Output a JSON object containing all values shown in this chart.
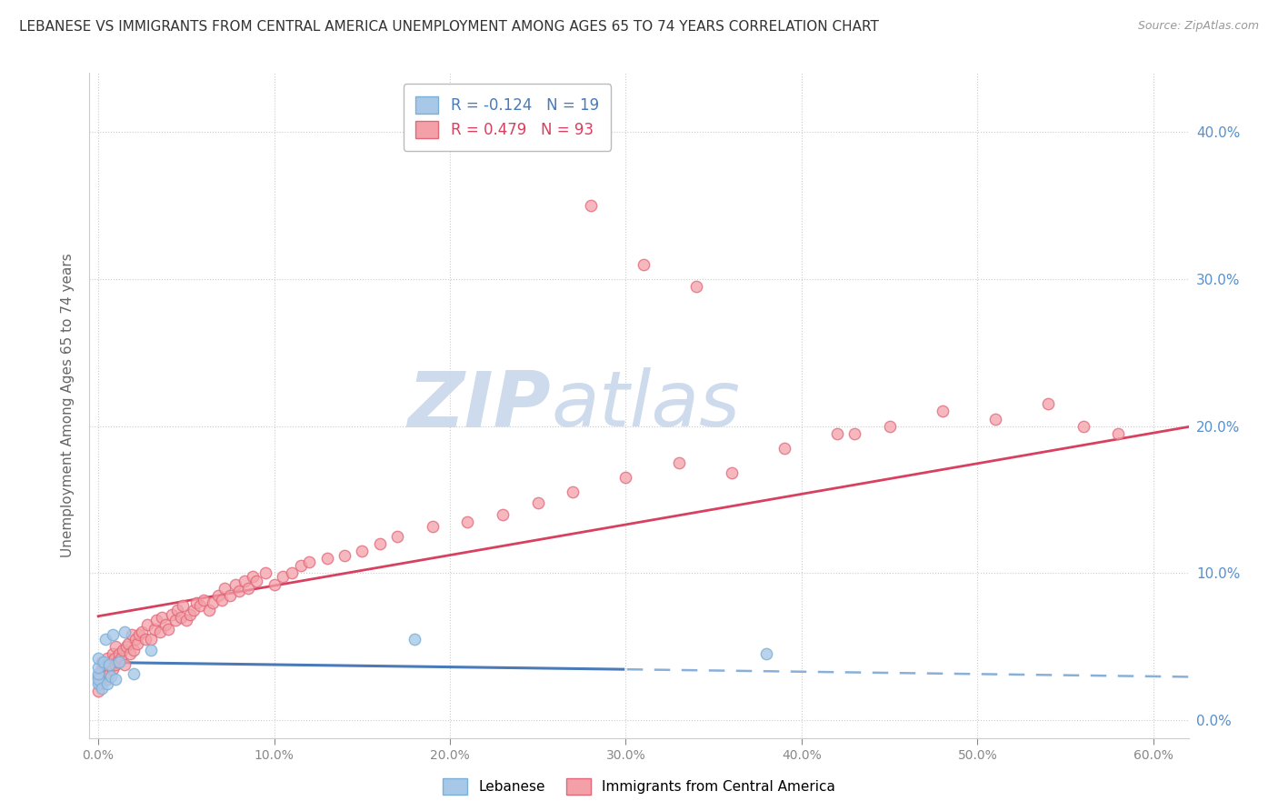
{
  "title": "LEBANESE VS IMMIGRANTS FROM CENTRAL AMERICA UNEMPLOYMENT AMONG AGES 65 TO 74 YEARS CORRELATION CHART",
  "source": "Source: ZipAtlas.com",
  "ylabel": "Unemployment Among Ages 65 to 74 years",
  "legend1_label": "Lebanese",
  "legend2_label": "Immigrants from Central America",
  "R1": -0.124,
  "N1": 19,
  "R2": 0.479,
  "N2": 93,
  "color_blue": "#a8c8e8",
  "color_blue_edge": "#7ab0d8",
  "color_pink": "#f4a0a8",
  "color_pink_edge": "#e06878",
  "color_line_blue_solid": "#4a7ab8",
  "color_line_blue_dash": "#8ab0d8",
  "color_line_pink": "#d84060",
  "watermark_zip": "ZIP",
  "watermark_atlas": "atlas",
  "watermark_color": "#c8d8ec",
  "xtick_vals": [
    0.0,
    0.1,
    0.2,
    0.3,
    0.4,
    0.5,
    0.6
  ],
  "xtick_labels": [
    "0.0%",
    "10.0%",
    "20.0%",
    "30.0%",
    "40.0%",
    "50.0%",
    "60.0%"
  ],
  "ytick_vals": [
    0.0,
    0.1,
    0.2,
    0.3,
    0.4
  ],
  "ytick_labels": [
    "0.0%",
    "10.0%",
    "20.0%",
    "30.0%",
    "40.0%"
  ],
  "yaxis_color": "#5590d0",
  "xaxis_label_color": "#888888",
  "blue_x": [
    0.0,
    0.0,
    0.0,
    0.0,
    0.0,
    0.002,
    0.003,
    0.004,
    0.005,
    0.006,
    0.007,
    0.008,
    0.01,
    0.012,
    0.015,
    0.02,
    0.03,
    0.18,
    0.38
  ],
  "blue_y": [
    0.025,
    0.028,
    0.032,
    0.036,
    0.042,
    0.022,
    0.04,
    0.055,
    0.025,
    0.038,
    0.03,
    0.058,
    0.028,
    0.04,
    0.06,
    0.032,
    0.048,
    0.055,
    0.045
  ],
  "pink_x": [
    0.0,
    0.0,
    0.001,
    0.002,
    0.002,
    0.003,
    0.004,
    0.005,
    0.005,
    0.006,
    0.007,
    0.008,
    0.008,
    0.009,
    0.01,
    0.01,
    0.011,
    0.012,
    0.013,
    0.014,
    0.015,
    0.016,
    0.017,
    0.018,
    0.019,
    0.02,
    0.021,
    0.022,
    0.023,
    0.025,
    0.027,
    0.028,
    0.03,
    0.032,
    0.033,
    0.035,
    0.036,
    0.038,
    0.04,
    0.042,
    0.044,
    0.045,
    0.047,
    0.048,
    0.05,
    0.052,
    0.054,
    0.056,
    0.058,
    0.06,
    0.063,
    0.065,
    0.068,
    0.07,
    0.072,
    0.075,
    0.078,
    0.08,
    0.083,
    0.085,
    0.088,
    0.09,
    0.095,
    0.1,
    0.105,
    0.11,
    0.115,
    0.12,
    0.13,
    0.14,
    0.15,
    0.16,
    0.17,
    0.19,
    0.21,
    0.23,
    0.25,
    0.27,
    0.3,
    0.33,
    0.36,
    0.39,
    0.42,
    0.45,
    0.48,
    0.51,
    0.54,
    0.56,
    0.58,
    0.31,
    0.34,
    0.28,
    0.43
  ],
  "pink_y": [
    0.02,
    0.03,
    0.025,
    0.035,
    0.04,
    0.03,
    0.038,
    0.028,
    0.042,
    0.032,
    0.038,
    0.045,
    0.035,
    0.042,
    0.038,
    0.05,
    0.04,
    0.045,
    0.042,
    0.048,
    0.038,
    0.05,
    0.052,
    0.045,
    0.058,
    0.048,
    0.055,
    0.052,
    0.058,
    0.06,
    0.055,
    0.065,
    0.055,
    0.062,
    0.068,
    0.06,
    0.07,
    0.065,
    0.062,
    0.072,
    0.068,
    0.075,
    0.07,
    0.078,
    0.068,
    0.072,
    0.075,
    0.08,
    0.078,
    0.082,
    0.075,
    0.08,
    0.085,
    0.082,
    0.09,
    0.085,
    0.092,
    0.088,
    0.095,
    0.09,
    0.098,
    0.095,
    0.1,
    0.092,
    0.098,
    0.1,
    0.105,
    0.108,
    0.11,
    0.112,
    0.115,
    0.12,
    0.125,
    0.132,
    0.135,
    0.14,
    0.148,
    0.155,
    0.165,
    0.175,
    0.168,
    0.185,
    0.195,
    0.2,
    0.21,
    0.205,
    0.215,
    0.2,
    0.195,
    0.31,
    0.295,
    0.35,
    0.195
  ]
}
